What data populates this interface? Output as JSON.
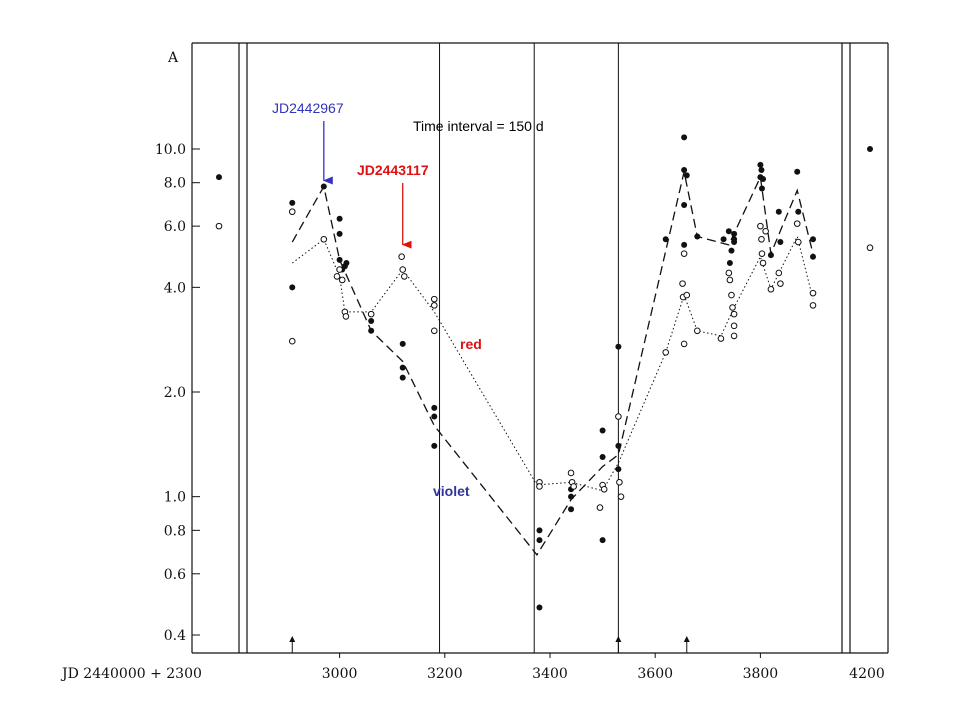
{
  "chart_data": {
    "type": "scatter",
    "y_scale": "log",
    "ylabel": "A",
    "xlabel": "JD 2440000 + 2300",
    "ylim": [
      0.37,
      14
    ],
    "xlim": [
      2855,
      4010
    ],
    "grid": false,
    "x_ticks": [
      3000,
      3200,
      3400,
      3600,
      3800
    ],
    "x_tick_extra": "4200",
    "y_ticks": [
      {
        "v": 0.4,
        "label": "0.4"
      },
      {
        "v": 0.6,
        "label": "0.6"
      },
      {
        "v": 0.8,
        "label": "0.8"
      },
      {
        "v": 1.0,
        "label": "1.0"
      },
      {
        "v": 2.0,
        "label": "2.0"
      },
      {
        "v": 4.0,
        "label": "4.0"
      },
      {
        "v": 6.0,
        "label": "6.0"
      },
      {
        "v": 8.0,
        "label": "8.0"
      },
      {
        "v": 10.0,
        "label": "10.0"
      }
    ],
    "vertical_lines_x": [
      3190,
      3370,
      3530
    ],
    "arrow_ticks_x": [
      2910,
      3530,
      3660
    ],
    "series": [
      {
        "marker": "filled",
        "points": [
          [
            2910,
            7.0
          ],
          [
            2910,
            4.0
          ],
          [
            2970,
            7.8
          ],
          [
            3000,
            6.3
          ],
          [
            3000,
            5.7
          ],
          [
            3000,
            4.8
          ],
          [
            3005,
            4.5
          ],
          [
            3010,
            4.6
          ],
          [
            3013,
            4.7
          ],
          [
            3060,
            3.2
          ],
          [
            3060,
            3.0
          ],
          [
            3120,
            2.75
          ],
          [
            3120,
            2.35
          ],
          [
            3120,
            2.2
          ],
          [
            3180,
            1.8
          ],
          [
            3180,
            1.7
          ],
          [
            3180,
            1.4
          ],
          [
            3380,
            0.8
          ],
          [
            3380,
            0.75
          ],
          [
            3380,
            0.48
          ],
          [
            3440,
            1.05
          ],
          [
            3440,
            1.0
          ],
          [
            3440,
            0.92
          ],
          [
            3500,
            1.55
          ],
          [
            3500,
            1.3
          ],
          [
            3500,
            0.75
          ],
          [
            3530,
            2.7
          ],
          [
            3530,
            1.4
          ],
          [
            3530,
            1.2
          ],
          [
            3620,
            5.5
          ],
          [
            3655,
            10.8
          ],
          [
            3655,
            8.7
          ],
          [
            3655,
            6.9
          ],
          [
            3655,
            5.3
          ],
          [
            3660,
            8.4
          ],
          [
            3680,
            5.6
          ],
          [
            3730,
            5.5
          ],
          [
            3740,
            5.8
          ],
          [
            3742,
            4.7
          ],
          [
            3745,
            5.1
          ],
          [
            3750,
            5.7
          ],
          [
            3750,
            5.5
          ],
          [
            3750,
            5.4
          ],
          [
            3800,
            8.3
          ],
          [
            3800,
            9.0
          ],
          [
            3802,
            8.7
          ],
          [
            3803,
            7.7
          ],
          [
            3805,
            8.2
          ],
          [
            3820,
            4.95
          ],
          [
            3835,
            6.6
          ],
          [
            3838,
            5.4
          ],
          [
            3870,
            8.6
          ],
          [
            3872,
            6.6
          ],
          [
            3900,
            5.5
          ],
          [
            3900,
            4.9
          ]
        ]
      },
      {
        "marker": "open",
        "points": [
          [
            2910,
            6.6
          ],
          [
            2910,
            2.8
          ],
          [
            2970,
            5.5
          ],
          [
            2995,
            4.3
          ],
          [
            3000,
            4.5
          ],
          [
            3005,
            4.2
          ],
          [
            3010,
            3.4
          ],
          [
            3012,
            3.3
          ],
          [
            3060,
            3.35
          ],
          [
            3118,
            4.9
          ],
          [
            3120,
            4.5
          ],
          [
            3123,
            4.3
          ],
          [
            3180,
            3.7
          ],
          [
            3180,
            3.55
          ],
          [
            3180,
            3.0
          ],
          [
            3380,
            1.1
          ],
          [
            3380,
            1.07
          ],
          [
            3440,
            1.17
          ],
          [
            3442,
            1.1
          ],
          [
            3445,
            1.07
          ],
          [
            3495,
            0.93
          ],
          [
            3500,
            1.08
          ],
          [
            3503,
            1.05
          ],
          [
            3530,
            1.7
          ],
          [
            3532,
            1.1
          ],
          [
            3535,
            1.0
          ],
          [
            3620,
            2.6
          ],
          [
            3652,
            4.1
          ],
          [
            3653,
            3.75
          ],
          [
            3655,
            5.0
          ],
          [
            3655,
            2.75
          ],
          [
            3660,
            3.8
          ],
          [
            3680,
            3.0
          ],
          [
            3725,
            2.85
          ],
          [
            3740,
            4.4
          ],
          [
            3742,
            4.2
          ],
          [
            3745,
            3.8
          ],
          [
            3747,
            3.5
          ],
          [
            3750,
            3.35
          ],
          [
            3750,
            3.1
          ],
          [
            3750,
            2.9
          ],
          [
            3800,
            6.0
          ],
          [
            3802,
            5.5
          ],
          [
            3803,
            5.0
          ],
          [
            3805,
            4.7
          ],
          [
            3810,
            5.8
          ],
          [
            3820,
            3.95
          ],
          [
            3835,
            4.4
          ],
          [
            3838,
            4.1
          ],
          [
            3870,
            6.1
          ],
          [
            3872,
            5.4
          ],
          [
            3900,
            3.85
          ],
          [
            3900,
            3.55
          ]
        ]
      }
    ],
    "dashed_curve": [
      [
        2910,
        5.4
      ],
      [
        2970,
        7.8
      ],
      [
        3000,
        4.8
      ],
      [
        3060,
        3.0
      ],
      [
        3120,
        2.45
      ],
      [
        3180,
        1.6
      ],
      [
        3375,
        0.68
      ],
      [
        3440,
        0.98
      ],
      [
        3500,
        1.22
      ],
      [
        3530,
        1.32
      ],
      [
        3655,
        8.6
      ],
      [
        3680,
        5.6
      ],
      [
        3740,
        5.3
      ],
      [
        3800,
        8.3
      ],
      [
        3820,
        5.0
      ],
      [
        3870,
        7.6
      ],
      [
        3900,
        5.0
      ]
    ],
    "dotted_curve": [
      [
        2910,
        4.7
      ],
      [
        2970,
        5.5
      ],
      [
        3000,
        4.3
      ],
      [
        3010,
        3.4
      ],
      [
        3060,
        3.4
      ],
      [
        3120,
        4.5
      ],
      [
        3180,
        3.4
      ],
      [
        3375,
        1.08
      ],
      [
        3440,
        1.1
      ],
      [
        3500,
        1.04
      ],
      [
        3530,
        1.25
      ],
      [
        3620,
        2.6
      ],
      [
        3655,
        3.8
      ],
      [
        3680,
        3.0
      ],
      [
        3725,
        2.9
      ],
      [
        3750,
        3.5
      ],
      [
        3800,
        4.9
      ],
      [
        3820,
        3.95
      ],
      [
        3870,
        5.6
      ],
      [
        3900,
        3.7
      ]
    ],
    "outer_points_left": [
      {
        "marker": "filled",
        "y": 8.3
      },
      {
        "marker": "open",
        "y": 6.0
      }
    ],
    "outer_points_right": [
      {
        "marker": "filled",
        "y": 10.0
      },
      {
        "marker": "open",
        "y": 5.2
      }
    ],
    "annotations": {
      "jd1": {
        "text": "JD2442967",
        "color": "#3333bb",
        "x": 2970,
        "y": 7.8
      },
      "jd2": {
        "text": "JD2443117",
        "color": "#dd1111",
        "x": 3120,
        "y": 5.1
      },
      "interval": {
        "text": "Time interval = 150 d",
        "color": "#000000"
      },
      "red": {
        "text": "red",
        "color": "#dd1111"
      },
      "violet": {
        "text": "violet",
        "color": "#333399"
      }
    }
  }
}
